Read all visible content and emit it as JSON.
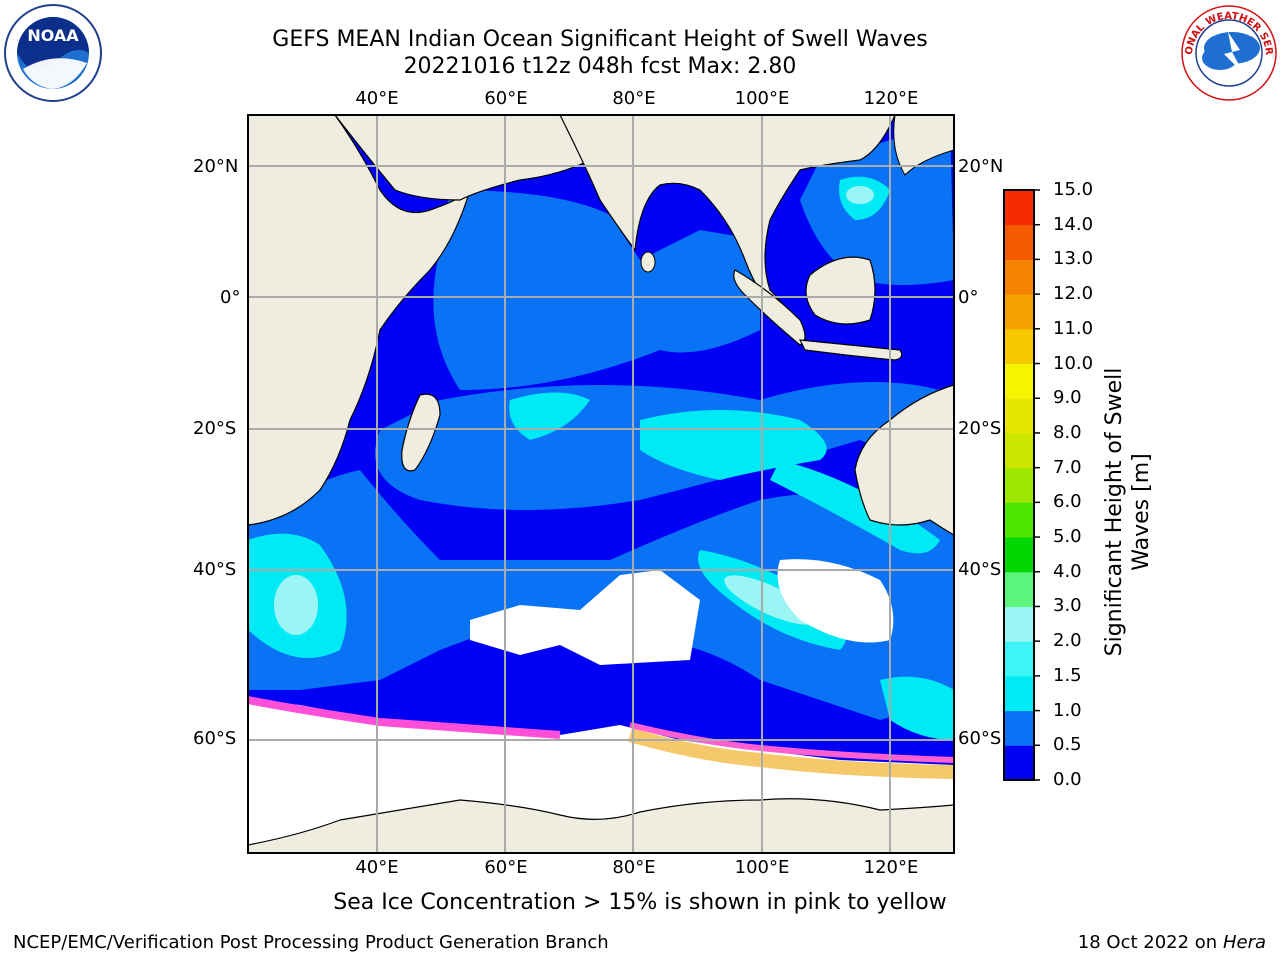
{
  "title_line1": "GEFS MEAN Indian Ocean Significant Height of Swell Waves",
  "title_line2": "20221016 t12z 048h fcst   Max: 2.80",
  "lon_labels": [
    "40°E",
    "60°E",
    "80°E",
    "100°E",
    "120°E"
  ],
  "lat_labels": [
    "20°N",
    "0°",
    "20°S",
    "40°S",
    "60°S"
  ],
  "colorbar": {
    "label": "Significant Height of Swell Waves [m]",
    "ticks": [
      "0.0",
      "0.5",
      "1.0",
      "1.5",
      "2.0",
      "3.0",
      "4.0",
      "5.0",
      "6.0",
      "7.0",
      "8.0",
      "9.0",
      "10.0",
      "11.0",
      "12.0",
      "13.0",
      "14.0",
      "15.0"
    ],
    "colors": [
      "#0000f5",
      "#0a72f5",
      "#00eaf5",
      "#3df5f5",
      "#9cf5f5",
      "#5cf57c",
      "#00d600",
      "#4ce600",
      "#9ce600",
      "#cde600",
      "#e6e600",
      "#f5f500",
      "#f5c800",
      "#f5a300",
      "#f58200",
      "#f55a00",
      "#f52c00",
      "#f50000"
    ]
  },
  "caption": "Sea Ice Concentration > 15% is shown in pink to yellow",
  "credit": "NCEP/EMC/Verification Post Processing Product Generation Branch",
  "date_text": "18 Oct 2022 on ",
  "date_host": "Hera",
  "logos": {
    "noaa_text": "NOAA",
    "nws_text": "NATIONAL WEATHER SERVICE"
  },
  "colors": {
    "ocean_low": "#0000f5",
    "ocean_mid": "#0a72f5",
    "ocean_high": "#00eaf5",
    "land": "#eeede0",
    "ice": "#ffffff"
  }
}
